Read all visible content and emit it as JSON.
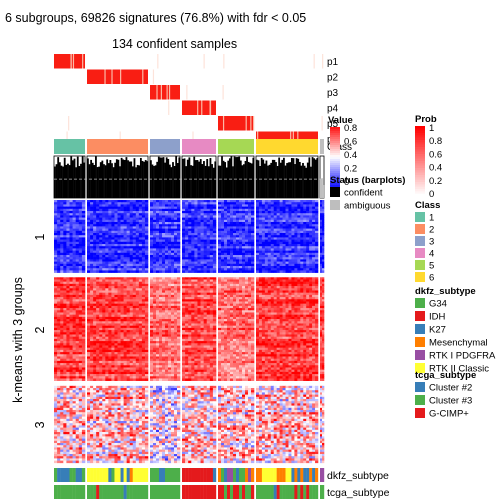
{
  "title": "6 subgroups, 69826 signatures (76.8%) with fdr < 0.05",
  "subtitle": "134 confident samples",
  "row_axis_label": "k-means with 3 groups",
  "row_groups": [
    "1",
    "2",
    "3"
  ],
  "prob_tracks": [
    "p1",
    "p2",
    "p3",
    "p4",
    "p5",
    "p6"
  ],
  "bottom_tracks": [
    "dkfz_subtype",
    "tcga_subtype"
  ],
  "silhouette_label": "Silhouette\nscore",
  "legends": {
    "value": {
      "title": "Value",
      "ticks": [
        "0.8",
        "0.6",
        "0.4",
        "0.2",
        "0"
      ]
    },
    "prob": {
      "title": "Prob",
      "ticks": [
        "1",
        "0.8",
        "0.6",
        "0.4",
        "0.2",
        "0"
      ]
    },
    "class": {
      "title": "Class",
      "items": [
        {
          "label": "1",
          "color": "#66c2a5"
        },
        {
          "label": "2",
          "color": "#fc8d62"
        },
        {
          "label": "3",
          "color": "#8da0cb"
        },
        {
          "label": "4",
          "color": "#e78ac3"
        },
        {
          "label": "5",
          "color": "#a6d854"
        },
        {
          "label": "6",
          "color": "#ffd92f"
        }
      ]
    },
    "status": {
      "title": "Status (barplots)",
      "items": [
        {
          "label": "confident",
          "color": "#000000"
        },
        {
          "label": "ambiguous",
          "color": "#bebebe"
        }
      ]
    },
    "dkfz": {
      "title": "dkfz_subtype",
      "items": [
        {
          "label": "G34",
          "color": "#4daf4a"
        },
        {
          "label": "IDH",
          "color": "#e41a1c"
        },
        {
          "label": "K27",
          "color": "#377eb8"
        },
        {
          "label": "Mesenchymal",
          "color": "#ff7f00"
        },
        {
          "label": "RTK I PDGFRA",
          "color": "#984ea3"
        },
        {
          "label": "RTK II Classic",
          "color": "#ffff33"
        }
      ]
    },
    "tcga": {
      "title": "tcga_subtype",
      "items": [
        {
          "label": "Cluster #2",
          "color": "#377eb8"
        },
        {
          "label": "Cluster #3",
          "color": "#4daf4a"
        },
        {
          "label": "G-CIMP+",
          "color": "#e41a1c"
        }
      ]
    }
  },
  "chart_data": {
    "type": "heatmap",
    "title": "6 subgroups, 69826 signatures (76.8%) with fdr < 0.05",
    "subtitle": "134 confident samples",
    "ylabel": "k-means with 3 groups",
    "column_classes": [
      {
        "class": "1",
        "relative_width": 31
      },
      {
        "class": "2",
        "relative_width": 61
      },
      {
        "class": "3",
        "relative_width": 30
      },
      {
        "class": "4",
        "relative_width": 34
      },
      {
        "class": "5",
        "relative_width": 36
      },
      {
        "class": "6",
        "relative_width": 62
      },
      {
        "class": "ambiguous",
        "relative_width": 4
      }
    ],
    "row_groups": [
      {
        "group": "1",
        "relative_height": 76,
        "pattern": "mostly low (blue)"
      },
      {
        "group": "2",
        "relative_height": 108,
        "pattern": "mostly high (red)"
      },
      {
        "group": "3",
        "relative_height": 80,
        "pattern": "mixed, mostly pale/red with blue"
      }
    ],
    "color_scale": {
      "low": "#0000ff",
      "mid": "#ffffff",
      "high": "#ff0000"
    },
    "value_range": [
      0,
      0.8
    ],
    "prob_range": [
      0,
      1
    ]
  }
}
